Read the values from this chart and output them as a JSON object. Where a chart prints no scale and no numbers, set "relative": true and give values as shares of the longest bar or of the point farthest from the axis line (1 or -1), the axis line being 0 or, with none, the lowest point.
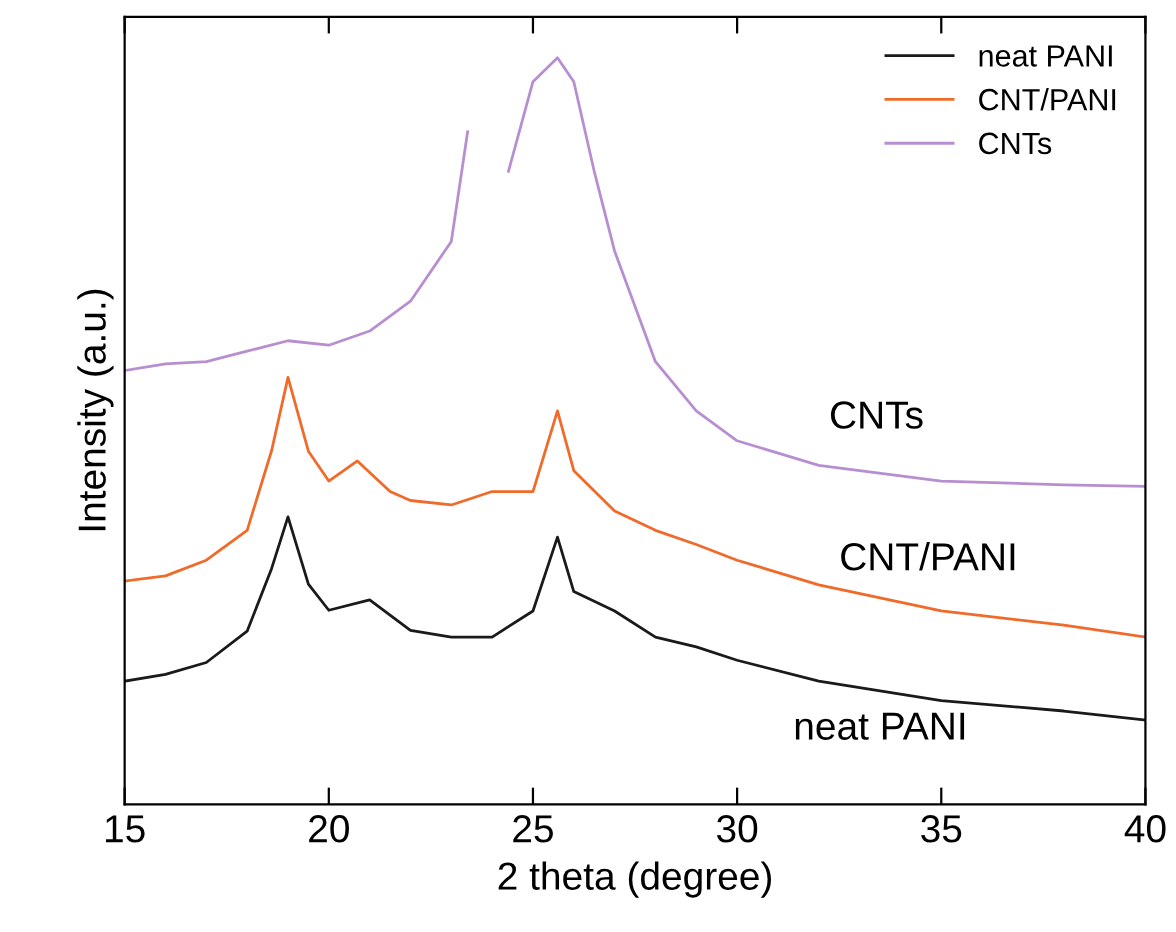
{
  "chart_data": {
    "type": "line",
    "relative": true,
    "xlabel": "2 theta (degree)",
    "ylabel": "Intensity (a.u.)",
    "xlim": [
      15,
      40
    ],
    "xticks": [
      15,
      20,
      25,
      30,
      35,
      40
    ],
    "legend": "top right",
    "grid": false,
    "marker": "none",
    "line_style": "solid",
    "series": [
      {
        "name": "neat PANI",
        "color": "#1a1a1a",
        "x": [
          15,
          16,
          17,
          18,
          18.6,
          19,
          19.5,
          20,
          21,
          22,
          23,
          24,
          25,
          25.6,
          26,
          27,
          28,
          29,
          30,
          32,
          35,
          38,
          40
        ],
        "values": [
          0.165,
          0.174,
          0.19,
          0.232,
          0.316,
          0.385,
          0.295,
          0.26,
          0.274,
          0.233,
          0.224,
          0.224,
          0.259,
          0.358,
          0.285,
          0.259,
          0.224,
          0.211,
          0.193,
          0.165,
          0.139,
          0.125,
          0.113
        ]
      },
      {
        "name": "CNT/PANI",
        "color": "#f06a2a",
        "x": [
          15,
          16,
          17,
          18,
          18.6,
          19,
          19.5,
          20,
          20.7,
          21.5,
          22,
          23,
          24,
          25,
          25.6,
          26,
          27,
          28,
          29,
          30,
          32,
          35,
          38,
          40
        ],
        "values": [
          0.299,
          0.306,
          0.327,
          0.367,
          0.474,
          0.572,
          0.473,
          0.433,
          0.46,
          0.419,
          0.407,
          0.401,
          0.419,
          0.419,
          0.527,
          0.447,
          0.393,
          0.367,
          0.348,
          0.327,
          0.294,
          0.259,
          0.24,
          0.224
        ]
      },
      {
        "name": "CNTs",
        "color": "#b78fd0",
        "x": [
          15,
          16,
          17,
          18,
          19,
          20,
          21,
          22,
          23,
          23.4,
          24,
          24.4,
          25,
          25.6,
          26,
          26.5,
          27,
          28,
          29,
          30,
          32,
          35,
          38,
          40
        ],
        "values": [
          0.581,
          0.59,
          0.593,
          0.607,
          0.621,
          0.615,
          0.634,
          0.674,
          0.754,
          0.901,
          null,
          0.848,
          0.968,
          1,
          0.968,
          0.848,
          0.741,
          0.593,
          0.527,
          0.487,
          0.454,
          0.433,
          0.428,
          0.426
        ]
      }
    ],
    "annotations": [
      "CNTs",
      "CNT/PANI",
      "neat PANI"
    ]
  }
}
